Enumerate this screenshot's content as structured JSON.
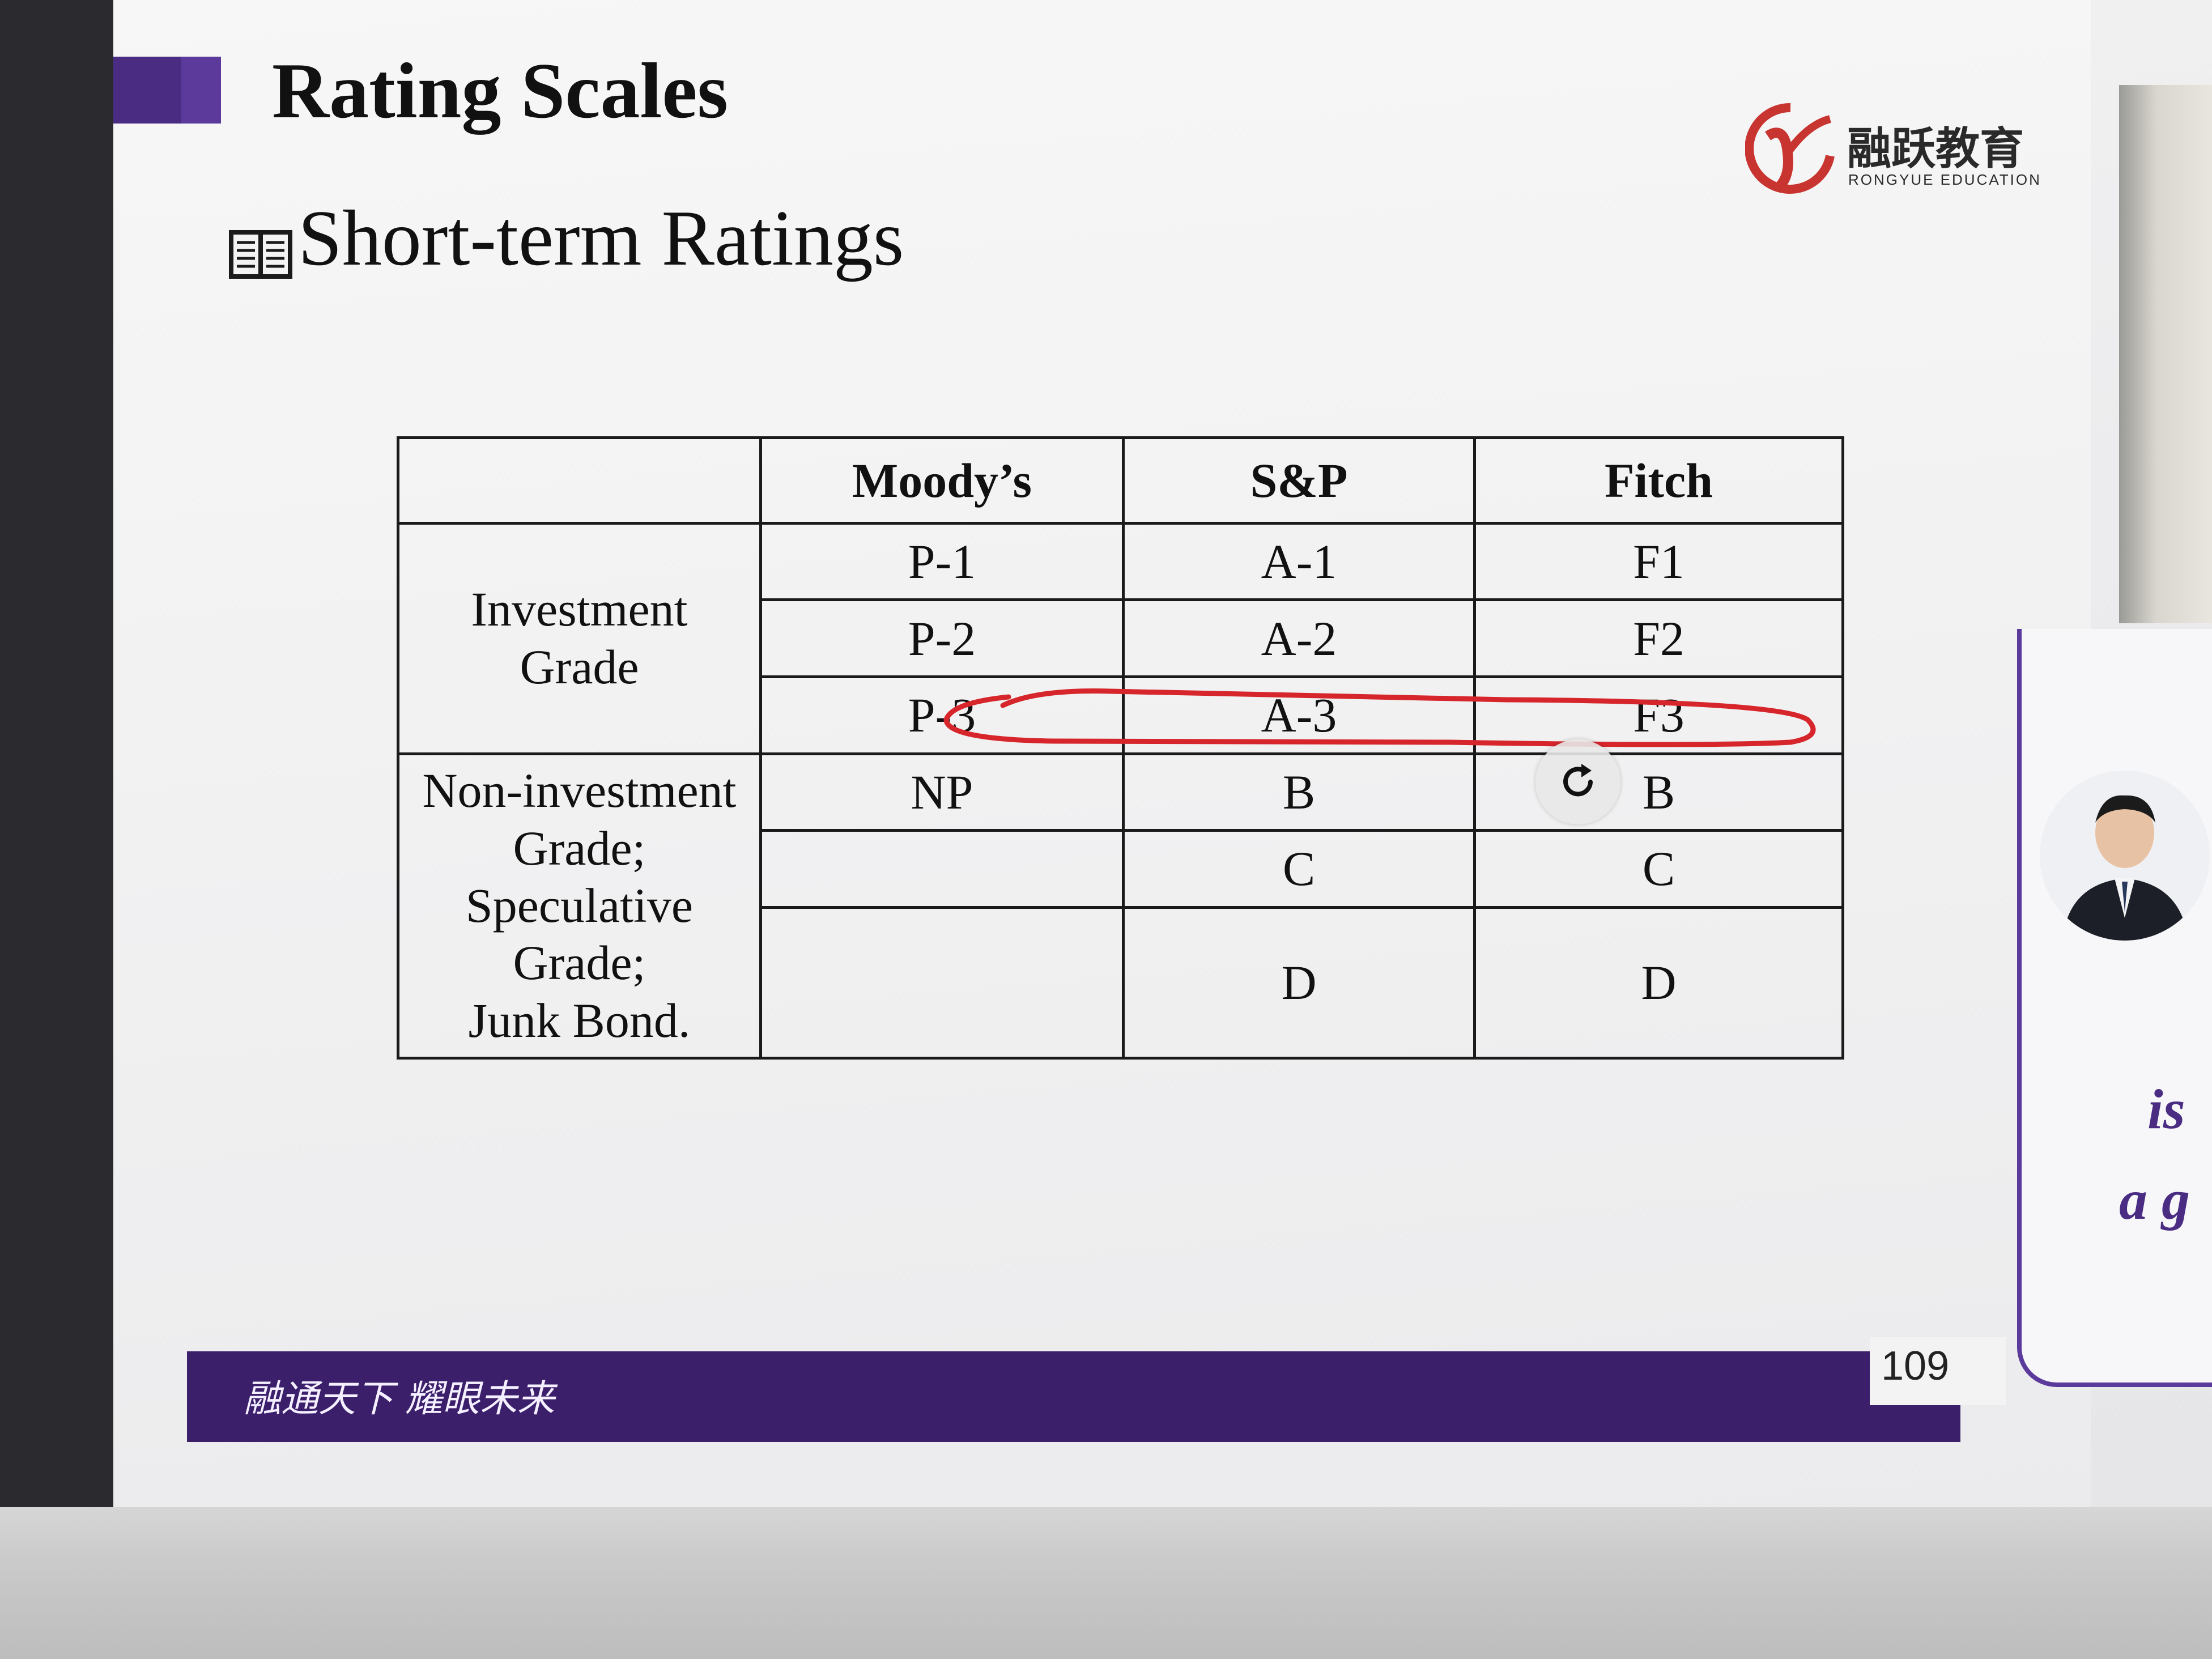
{
  "slide": {
    "title": "Rating Scales",
    "subtitle": "Short-term Ratings",
    "logo": {
      "cn": "融跃教育",
      "en": "RONGYUE EDUCATION"
    },
    "footer_slogan": "融通天下 耀眼未来",
    "page_number": "109"
  },
  "table": {
    "headers": [
      "",
      "Moody’s",
      "S&P",
      "Fitch"
    ],
    "investment_grade_label": [
      "Investment",
      "Grade"
    ],
    "non_investment_grade_label": [
      "Non-investment",
      "Grade;",
      "Speculative",
      "Grade;",
      "Junk Bond."
    ],
    "investment_rows": [
      {
        "moodys": "P-1",
        "sp": "A-1",
        "fitch": "F1"
      },
      {
        "moodys": "P-2",
        "sp": "A-2",
        "fitch": "F2"
      },
      {
        "moodys": "P-3",
        "sp": "A-3",
        "fitch": "F3"
      }
    ],
    "non_investment_rows": [
      {
        "moodys": "NP",
        "sp": "B",
        "fitch": "B"
      },
      {
        "moodys": "",
        "sp": "C",
        "fitch": "C"
      },
      {
        "moodys": "",
        "sp": "D",
        "fitch": "D"
      }
    ]
  },
  "annotation": {
    "color": "#d7262b",
    "target_row": "P-3 / A-3 / F3"
  },
  "side_panel": {
    "text_line_1": "is",
    "text_line_2": "a g"
  },
  "colors": {
    "brand_purple": "#4a2d83",
    "footer_purple": "#3c1f6b",
    "logo_red": "#c8342f"
  }
}
